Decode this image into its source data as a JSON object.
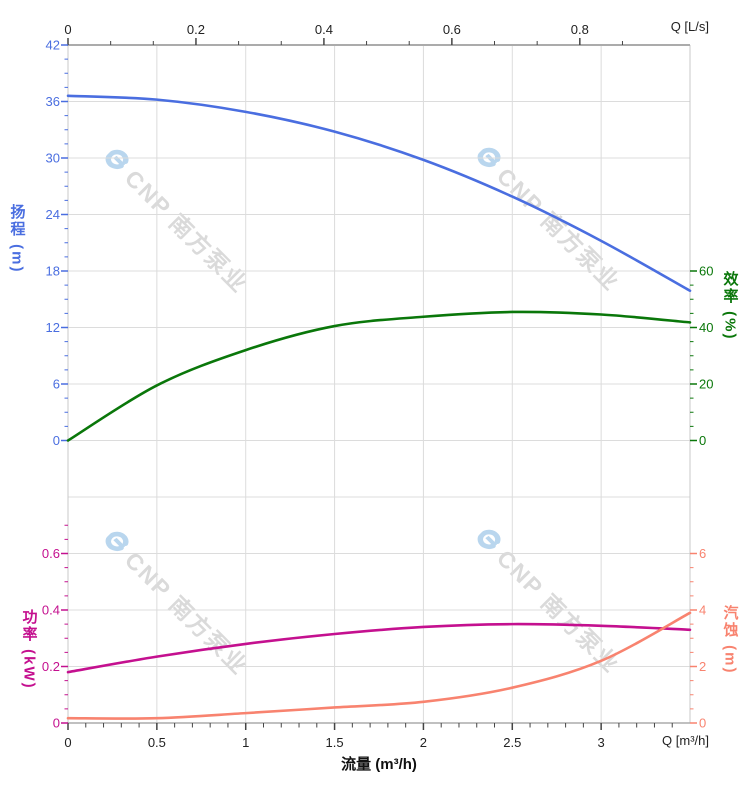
{
  "watermark": {
    "text": "CNP 南方泵业"
  },
  "colors": {
    "head": "#4a6ee0",
    "efficiency": "#0a770a",
    "power": "#c4108f",
    "npsh": "#f8836f",
    "grid": "#dcdcdc",
    "frame": "#ababab",
    "tick_text": "#222222",
    "watermark_text": "#dadada",
    "watermark_logo": "#b9d6ee"
  },
  "chart_data": {
    "type": "line",
    "x": [
      0,
      0.5,
      1,
      1.5,
      2,
      2.5,
      3,
      3.5
    ],
    "x_axis": {
      "bottom_label": "Q [m³/h]",
      "bottom_title": "流量 (m³/h)",
      "bottom_ticks": [
        "0",
        "0.5",
        "1",
        "1.5",
        "2",
        "2.5",
        "3"
      ],
      "bottom_minor_step": 0.1,
      "top_label": "Q [L/s]",
      "top_ticks": [
        "0",
        "0.2",
        "0.4",
        "0.6",
        "0.8"
      ],
      "xlim_m3h": [
        0,
        3.5
      ],
      "grid": true
    },
    "series": [
      {
        "key": "head",
        "name": "扬程",
        "ylabel": "扬程 (m)",
        "color": "#4a6ee0",
        "ylim": [
          0,
          42
        ],
        "yticks": [
          42,
          36,
          30,
          24,
          18,
          12,
          6,
          0
        ],
        "minor_step": 1.5,
        "values": [
          36.6,
          36.2,
          34.9,
          32.8,
          29.8,
          25.9,
          21.2,
          15.9
        ]
      },
      {
        "key": "efficiency",
        "name": "效率",
        "ylabel": "效率 (%)",
        "color": "#0a770a",
        "ylim": [
          0,
          60
        ],
        "yticks": [
          60,
          40,
          20,
          0
        ],
        "minor_step": 5,
        "values": [
          0,
          19.5,
          32,
          40.5,
          43.8,
          45.5,
          44.6,
          41.8
        ]
      },
      {
        "key": "power",
        "name": "功率",
        "ylabel": "功率 (kW)",
        "color": "#c4108f",
        "ylim": [
          0,
          0.6
        ],
        "yticks": [
          0.6,
          0.4,
          0.2,
          0
        ],
        "minor_step": 0.05,
        "values": [
          0.18,
          0.235,
          0.28,
          0.315,
          0.34,
          0.35,
          0.344,
          0.33
        ]
      },
      {
        "key": "npsh",
        "name": "汽蚀",
        "ylabel": "汽蚀 (m)",
        "color": "#f8836f",
        "ylim": [
          0,
          6
        ],
        "yticks": [
          6,
          4,
          2,
          0
        ],
        "minor_step": 0.5,
        "values": [
          0.17,
          0.17,
          0.35,
          0.55,
          0.75,
          1.25,
          2.2,
          3.9
        ]
      }
    ],
    "title": "",
    "legend": "none",
    "grid": true
  }
}
